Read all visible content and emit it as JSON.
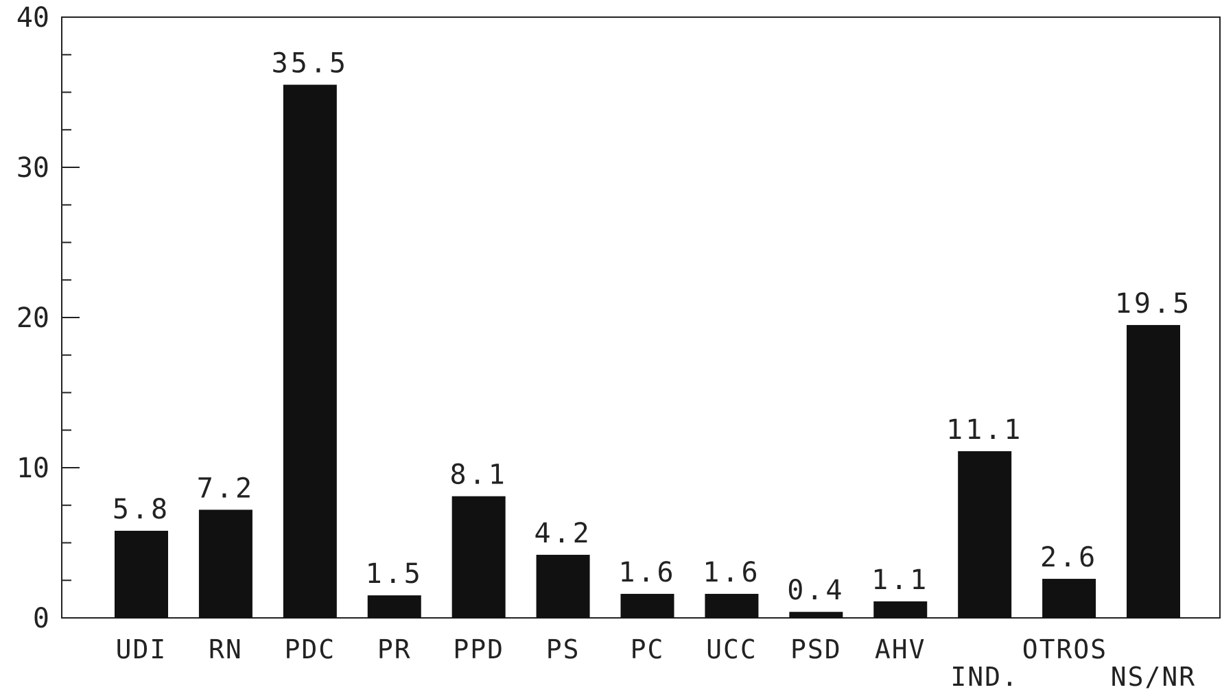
{
  "chart_data": {
    "type": "bar",
    "categories": [
      "UDI",
      "RN",
      "PDC",
      "PR",
      "PPD",
      "PS",
      "PC",
      "UCC",
      "PSD",
      "AHV",
      "IND.",
      "",
      "NS/NR"
    ],
    "values": [
      5.8,
      7.2,
      35.5,
      1.5,
      8.1,
      4.2,
      1.6,
      1.6,
      0.4,
      1.1,
      11.1,
      2.6,
      19.5
    ],
    "value_labels": [
      "5.8",
      "7.2",
      "35.5",
      "1.5",
      "8.1",
      "4.2",
      "1.6",
      "1.6",
      "0.4",
      "1.1",
      "11.1",
      "2.6",
      "19.5"
    ],
    "group_label": "OTROS",
    "ylim": [
      0,
      40
    ],
    "yticks": [
      0,
      10,
      20,
      30,
      40
    ],
    "minor_tick_step": 2.5,
    "title": "",
    "xlabel": "",
    "ylabel": "",
    "bar_color": "#111111",
    "grid": false,
    "legend": "none"
  }
}
